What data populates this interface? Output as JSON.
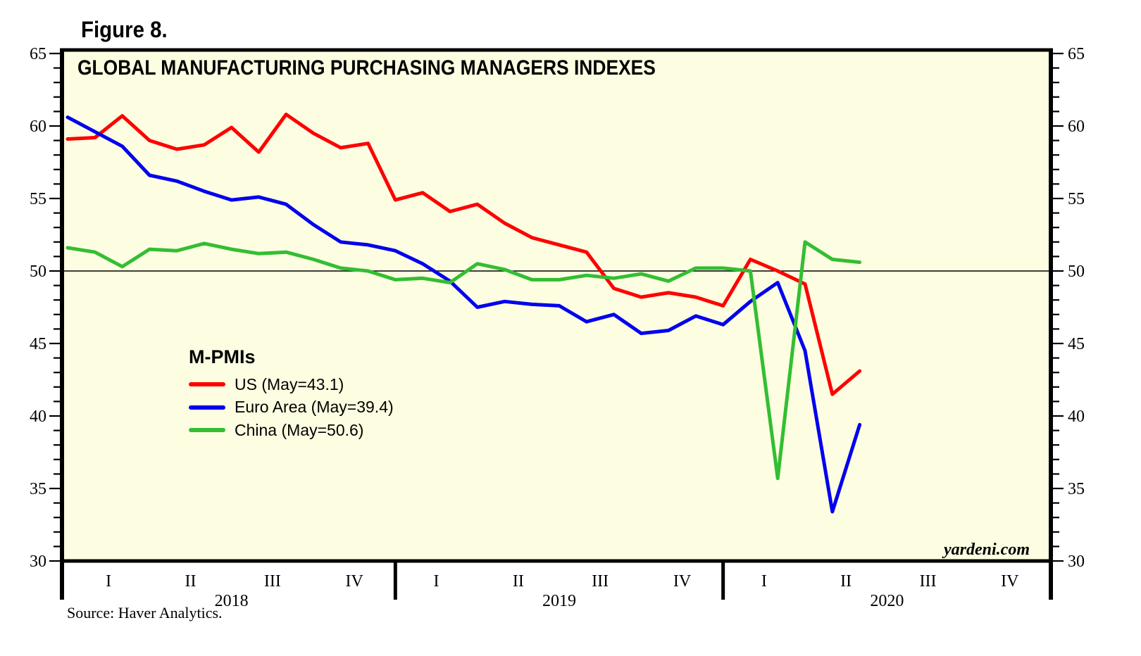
{
  "figure": {
    "label": "Figure 8."
  },
  "chart": {
    "title": "GLOBAL MANUFACTURING PURCHASING MANAGERS INDEXES",
    "watermark": "yardeni.com",
    "source": "Source: Haver Analytics.",
    "colors": {
      "plot_background": "#FDFDE1",
      "axis": "#000000",
      "reference_line": "#000000",
      "us_line": "#FF0000",
      "euro_area_line": "#0000EE",
      "china_line": "#33BE33"
    },
    "legend": {
      "title": "M-PMIs",
      "position": "inside-left-middle"
    }
  },
  "chart_data": {
    "type": "line",
    "title": "GLOBAL MANUFACTURING PURCHASING MANAGERS INDEXES",
    "xlabel": "",
    "ylabel": "",
    "ylim": [
      30,
      65
    ],
    "y_major_step": 5,
    "y_minor_step": 1,
    "grid": "reference line at 50 only",
    "reference_line": 50,
    "x": [
      "Dec 2017",
      "Jan 2018",
      "Feb 2018",
      "Mar 2018",
      "Apr 2018",
      "May 2018",
      "Jun 2018",
      "Jul 2018",
      "Aug 2018",
      "Sep 2018",
      "Oct 2018",
      "Nov 2018",
      "Dec 2018",
      "Jan 2019",
      "Feb 2019",
      "Mar 2019",
      "Apr 2019",
      "May 2019",
      "Jun 2019",
      "Jul 2019",
      "Aug 2019",
      "Sep 2019",
      "Oct 2019",
      "Nov 2019",
      "Dec 2019",
      "Jan 2020",
      "Feb 2020",
      "Mar 2020",
      "Apr 2020",
      "May 2020"
    ],
    "x_axis": {
      "months_domain": 36,
      "quarter_labels": [
        "I",
        "II",
        "III",
        "IV",
        "I",
        "II",
        "III",
        "IV",
        "I",
        "II",
        "III",
        "IV"
      ],
      "year_labels": [
        "2018",
        "2019",
        "2020"
      ],
      "year_divider_months": [
        12,
        24
      ]
    },
    "series": [
      {
        "name": "US",
        "legend_label": "US (May=43.1)",
        "color": "#FF0000",
        "values": [
          59.1,
          59.2,
          60.7,
          59.0,
          58.4,
          58.7,
          59.9,
          58.2,
          60.8,
          59.5,
          58.5,
          58.8,
          54.9,
          55.4,
          54.1,
          54.6,
          53.3,
          52.3,
          51.8,
          51.3,
          48.8,
          48.2,
          48.5,
          48.2,
          47.6,
          50.8,
          50.0,
          49.1,
          41.5,
          43.1
        ]
      },
      {
        "name": "Euro Area",
        "legend_label": "Euro Area (May=39.4)",
        "color": "#0000EE",
        "values": [
          60.6,
          59.6,
          58.6,
          56.6,
          56.2,
          55.5,
          54.9,
          55.1,
          54.6,
          53.2,
          52.0,
          51.8,
          51.4,
          50.5,
          49.3,
          47.5,
          47.9,
          47.7,
          47.6,
          46.5,
          47.0,
          45.7,
          45.9,
          46.9,
          46.3,
          47.9,
          49.2,
          44.5,
          33.4,
          39.4
        ]
      },
      {
        "name": "China",
        "legend_label": "China (May=50.6)",
        "color": "#33BE33",
        "values": [
          51.6,
          51.3,
          50.3,
          51.5,
          51.4,
          51.9,
          51.5,
          51.2,
          51.3,
          50.8,
          50.2,
          50.0,
          49.4,
          49.5,
          49.2,
          50.5,
          50.1,
          49.4,
          49.4,
          49.7,
          49.5,
          49.8,
          49.3,
          50.2,
          50.2,
          50.0,
          35.7,
          52.0,
          50.8,
          50.6
        ]
      }
    ]
  }
}
